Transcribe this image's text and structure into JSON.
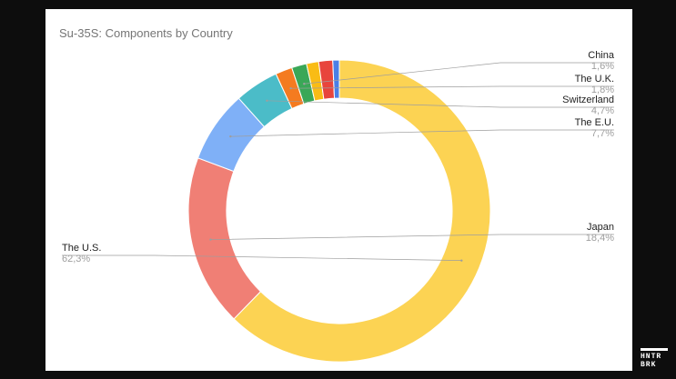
{
  "chart_data": {
    "type": "pie",
    "style": "donut",
    "title": "Su-35S: Components by Country",
    "slices": [
      {
        "name": "The U.S.",
        "label": "62,3%",
        "value": 62.3,
        "color": "#fcd353"
      },
      {
        "name": "Japan",
        "label": "18,4%",
        "value": 18.4,
        "color": "#f07f75"
      },
      {
        "name": "The E.U.",
        "label": "7,7%",
        "value": 7.7,
        "color": "#7fb0f7"
      },
      {
        "name": "Switzerland",
        "label": "4,7%",
        "value": 4.7,
        "color": "#4bbcc8"
      },
      {
        "name": "The U.K.",
        "label": "1,8%",
        "value": 1.8,
        "color": "#f47b20"
      },
      {
        "name": "China",
        "label": "1,6%",
        "value": 1.6,
        "color": "#3aa757"
      },
      {
        "name": "",
        "label": "",
        "value": 1.3,
        "color": "#f9bc15"
      },
      {
        "name": "",
        "label": "",
        "value": 1.5,
        "color": "#e8453c"
      },
      {
        "name": "",
        "label": "",
        "value": 0.7,
        "color": "#4a7fe6"
      }
    ]
  },
  "logo": {
    "line1": "HNTR",
    "line2": "BRK"
  }
}
